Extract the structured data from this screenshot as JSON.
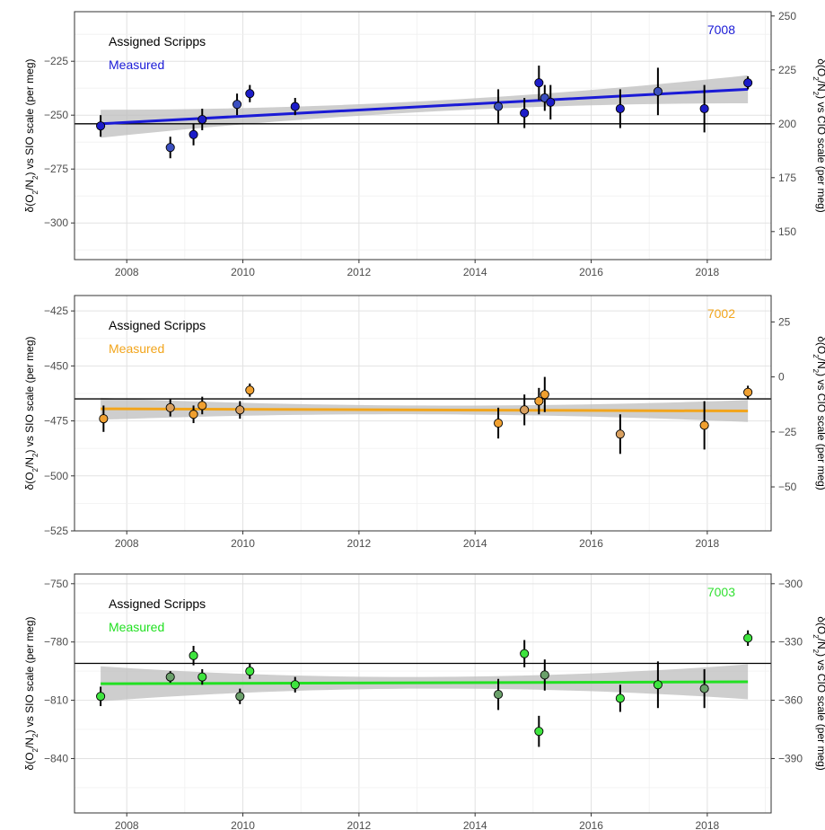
{
  "chart_data": [
    {
      "type": "scatter",
      "label_id": "7008",
      "colors": {
        "id": "#1a1ad6",
        "line": "#1a1ad6",
        "point": "#1c1cc8",
        "point_faded": "#3b4fc0"
      },
      "legend": {
        "assigned": "Assigned Scripps",
        "measured": "Measured"
      },
      "ylabel_left": "δ(O₂/N₂) vs SIO scale (per meg)",
      "ylabel_right": "δ(O₂/N₂) vs CIO scale (per meg)",
      "xlim": [
        2007.1,
        2019.1
      ],
      "ylim": [
        -317,
        -202
      ],
      "xticks": [
        2008,
        2010,
        2012,
        2014,
        2016,
        2018
      ],
      "yticks_left": [
        -225,
        -250,
        -275,
        -300
      ],
      "yticks_right": [
        250,
        225,
        200,
        175,
        150
      ],
      "right_offset": 454,
      "assigned_value": -254,
      "fit": {
        "start": [
          2007.55,
          -254
        ],
        "end": [
          2018.7,
          -238
        ],
        "band_start": 6.5,
        "band_end": 6.5,
        "band_mid": 2.5
      },
      "points": [
        {
          "x": 2007.55,
          "y": -255,
          "err": 5
        },
        {
          "x": 2008.75,
          "y": -265,
          "err": 5
        },
        {
          "x": 2009.15,
          "y": -259,
          "err": 5
        },
        {
          "x": 2009.3,
          "y": -252,
          "err": 5
        },
        {
          "x": 2009.9,
          "y": -245,
          "err": 5
        },
        {
          "x": 2010.12,
          "y": -240,
          "err": 4
        },
        {
          "x": 2010.9,
          "y": -246,
          "err": 4
        },
        {
          "x": 2014.4,
          "y": -246,
          "err": 8
        },
        {
          "x": 2014.85,
          "y": -249,
          "err": 7
        },
        {
          "x": 2015.1,
          "y": -235,
          "err": 8
        },
        {
          "x": 2015.2,
          "y": -242,
          "err": 6
        },
        {
          "x": 2015.3,
          "y": -244,
          "err": 8
        },
        {
          "x": 2016.5,
          "y": -247,
          "err": 9
        },
        {
          "x": 2017.15,
          "y": -239,
          "err": 11
        },
        {
          "x": 2017.95,
          "y": -247,
          "err": 11
        },
        {
          "x": 2018.7,
          "y": -235,
          "err": 3
        }
      ]
    },
    {
      "type": "scatter",
      "label_id": "7002",
      "colors": {
        "id": "#f2a51c",
        "line": "#f2a51c",
        "point": "#f0a030",
        "point_faded": "#d9a060"
      },
      "legend": {
        "assigned": "Assigned Scripps",
        "measured": "Measured"
      },
      "ylabel_left": "δ(O₂/N₂) vs SIO scale (per meg)",
      "ylabel_right": "δ(O₂/N₂) vs CIO scale (per meg)",
      "xlim": [
        2007.1,
        2019.1
      ],
      "ylim": [
        -525,
        -418
      ],
      "xticks": [
        2008,
        2010,
        2012,
        2014,
        2016,
        2018
      ],
      "yticks_left": [
        -425,
        -450,
        -475,
        -500,
        -525
      ],
      "yticks_right": [
        25,
        0,
        -25,
        -50
      ],
      "right_offset": 455,
      "assigned_value": -465,
      "fit": {
        "start": [
          2007.55,
          -469.5
        ],
        "end": [
          2018.7,
          -470.5
        ],
        "band_start": 5,
        "band_end": 6,
        "band_mid": 2
      },
      "points": [
        {
          "x": 2007.6,
          "y": -474,
          "err": 6
        },
        {
          "x": 2008.75,
          "y": -469,
          "err": 4
        },
        {
          "x": 2009.15,
          "y": -472,
          "err": 4
        },
        {
          "x": 2009.3,
          "y": -468,
          "err": 4
        },
        {
          "x": 2009.95,
          "y": -470,
          "err": 4
        },
        {
          "x": 2010.12,
          "y": -461,
          "err": 3
        },
        {
          "x": 2014.4,
          "y": -476,
          "err": 7
        },
        {
          "x": 2014.85,
          "y": -470,
          "err": 7
        },
        {
          "x": 2015.1,
          "y": -466,
          "err": 6
        },
        {
          "x": 2015.2,
          "y": -463,
          "err": 8
        },
        {
          "x": 2016.5,
          "y": -481,
          "err": 9
        },
        {
          "x": 2017.95,
          "y": -477,
          "err": 11
        },
        {
          "x": 2018.7,
          "y": -462,
          "err": 3
        }
      ]
    },
    {
      "type": "scatter",
      "label_id": "7003",
      "colors": {
        "id": "#33e033",
        "line": "#22e022",
        "point": "#3ee43e",
        "point_faded": "#6aa06a"
      },
      "legend": {
        "assigned": "Assigned Scripps",
        "measured": "Measured"
      },
      "ylabel_left": "δ(O₂/N₂) vs SIO scale (per meg)",
      "ylabel_right": "δ(O₂/N₂) vs CIO scale (per meg)",
      "xlim": [
        2007.1,
        2019.1
      ],
      "ylim": [
        -868,
        -745
      ],
      "xticks": [
        2008,
        2010,
        2012,
        2014,
        2016,
        2018
      ],
      "yticks_left": [
        -750,
        -780,
        -810,
        -840
      ],
      "yticks_right": [
        -300,
        -330,
        -360,
        -390
      ],
      "right_offset": 450,
      "assigned_value": -791,
      "fit": {
        "start": [
          2007.55,
          -801.5
        ],
        "end": [
          2018.7,
          -800.5
        ],
        "band_start": 9,
        "band_end": 9,
        "band_mid": 3
      },
      "points": [
        {
          "x": 2007.55,
          "y": -808,
          "err": 5
        },
        {
          "x": 2008.75,
          "y": -798,
          "err": 3
        },
        {
          "x": 2009.15,
          "y": -787,
          "err": 5
        },
        {
          "x": 2009.3,
          "y": -798,
          "err": 4
        },
        {
          "x": 2009.95,
          "y": -808,
          "err": 4
        },
        {
          "x": 2010.12,
          "y": -795,
          "err": 4
        },
        {
          "x": 2010.9,
          "y": -802,
          "err": 4
        },
        {
          "x": 2014.4,
          "y": -807,
          "err": 8
        },
        {
          "x": 2014.85,
          "y": -786,
          "err": 7
        },
        {
          "x": 2015.1,
          "y": -826,
          "err": 8
        },
        {
          "x": 2015.2,
          "y": -797,
          "err": 8
        },
        {
          "x": 2016.5,
          "y": -809,
          "err": 7
        },
        {
          "x": 2017.15,
          "y": -802,
          "err": 12
        },
        {
          "x": 2017.95,
          "y": -804,
          "err": 10
        },
        {
          "x": 2018.7,
          "y": -778,
          "err": 4
        }
      ]
    }
  ]
}
